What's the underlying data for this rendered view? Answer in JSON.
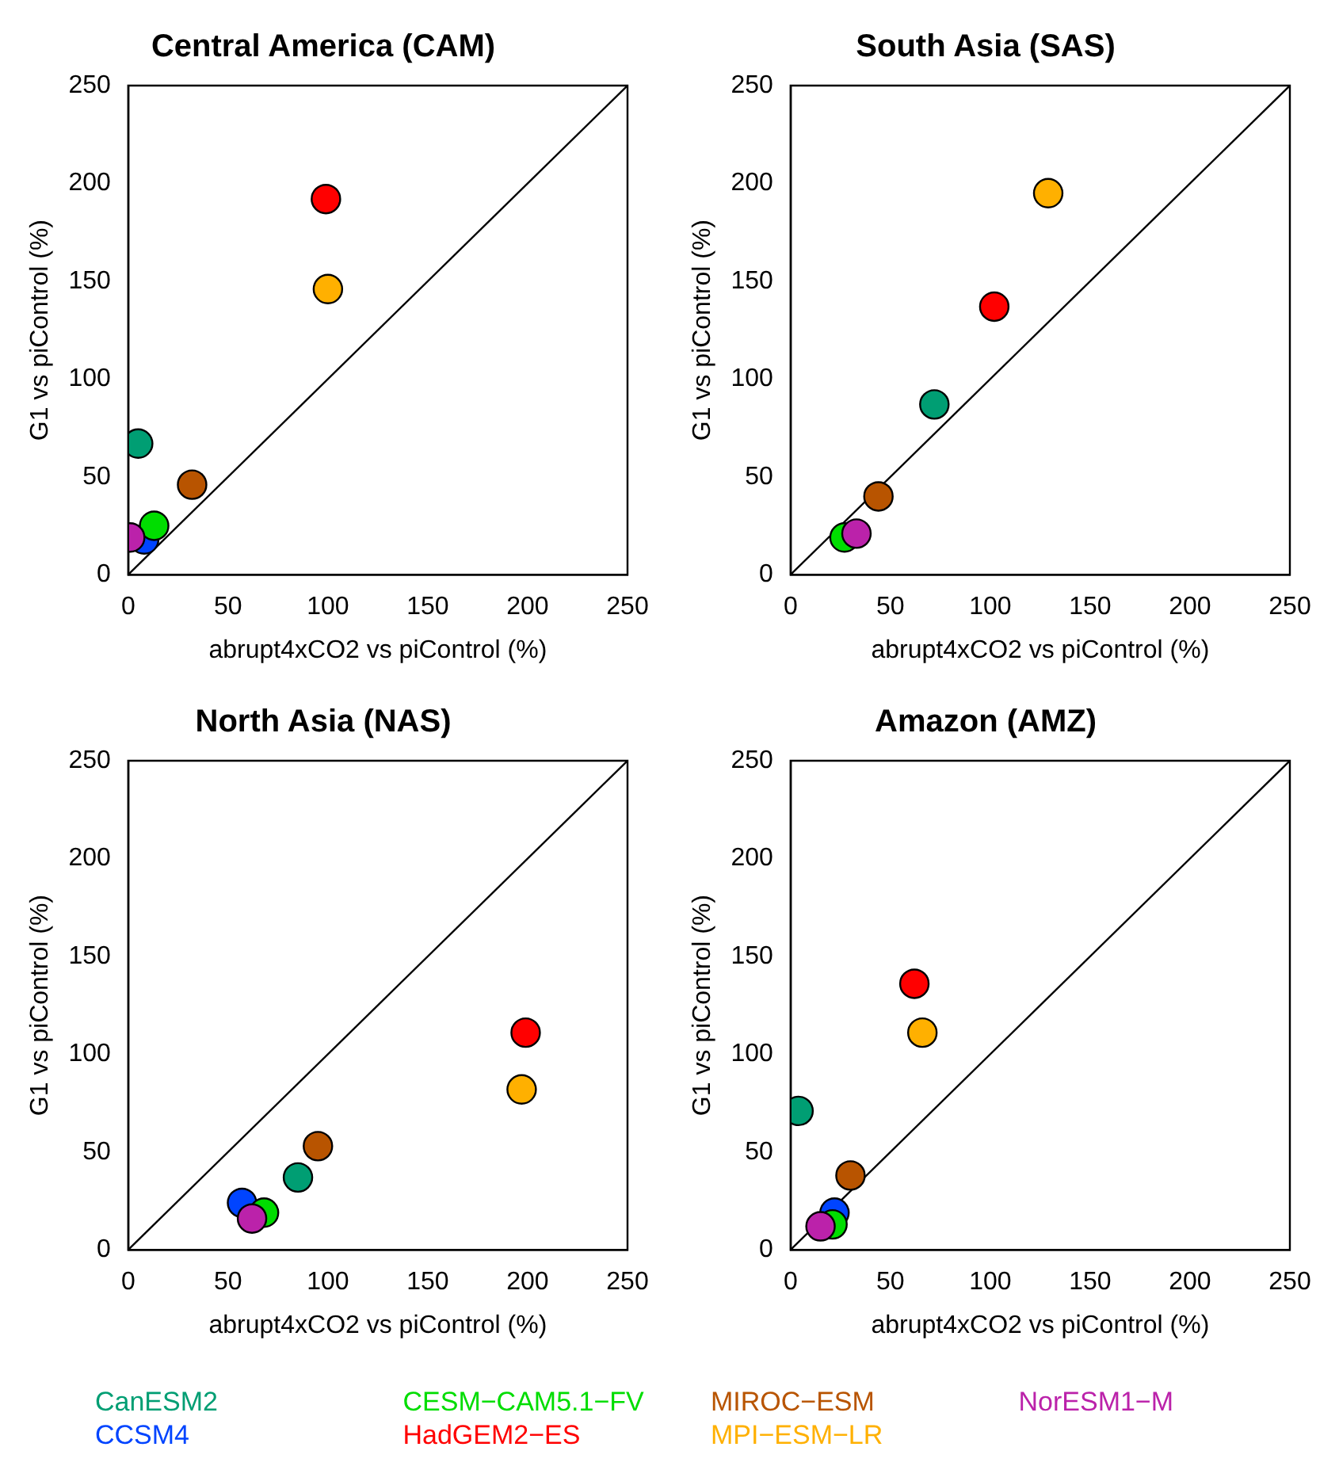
{
  "chart_data": [
    {
      "type": "scatter",
      "title": "Central America (CAM)",
      "xlabel": "abrupt4xCO2 vs piControl (%)",
      "ylabel": "G1 vs piControl (%)",
      "xlim": [
        0,
        250
      ],
      "ylim": [
        0,
        250
      ],
      "xticks": [
        0,
        50,
        100,
        150,
        200,
        250
      ],
      "yticks": [
        0,
        50,
        100,
        150,
        200,
        250
      ],
      "grid": false,
      "legend": "bottom",
      "marker": "circle",
      "series": [
        {
          "name": "CanESM2",
          "color": "#009e73",
          "x": [
            5
          ],
          "values": [
            67
          ]
        },
        {
          "name": "CCSM4",
          "color": "#0044ff",
          "x": [
            8
          ],
          "values": [
            18
          ]
        },
        {
          "name": "CESM−CAM5.1−FV",
          "color": "#00dd00",
          "x": [
            13
          ],
          "values": [
            25
          ]
        },
        {
          "name": "HadGEM2−ES",
          "color": "#ff0000",
          "x": [
            99
          ],
          "values": [
            192
          ]
        },
        {
          "name": "MIROC−ESM",
          "color": "#b85400",
          "x": [
            32
          ],
          "values": [
            46
          ]
        },
        {
          "name": "MPI−ESM−LR",
          "color": "#ffb000",
          "x": [
            100
          ],
          "values": [
            146
          ]
        },
        {
          "name": "NorESM1−M",
          "color": "#bb22aa",
          "x": [
            1
          ],
          "values": [
            19
          ]
        },
        {
          "type": "line",
          "marker": "none",
          "color": "#000000",
          "x": [
            0,
            250
          ],
          "values": [
            0,
            250
          ]
        }
      ]
    },
    {
      "type": "scatter",
      "title": "South Asia (SAS)",
      "xlabel": "abrupt4xCO2 vs piControl (%)",
      "ylabel": "G1 vs piControl (%)",
      "xlim": [
        0,
        250
      ],
      "ylim": [
        0,
        250
      ],
      "xticks": [
        0,
        50,
        100,
        150,
        200,
        250
      ],
      "yticks": [
        0,
        50,
        100,
        150,
        200,
        250
      ],
      "grid": false,
      "marker": "circle",
      "series": [
        {
          "color": "#009e73",
          "x": [
            72
          ],
          "values": [
            87
          ]
        },
        {
          "color": "#00dd00",
          "x": [
            27
          ],
          "values": [
            19
          ]
        },
        {
          "color": "#ff0000",
          "x": [
            102
          ],
          "values": [
            137
          ]
        },
        {
          "color": "#b85400",
          "x": [
            44
          ],
          "values": [
            40
          ]
        },
        {
          "color": "#ffb000",
          "x": [
            129
          ],
          "values": [
            195
          ]
        },
        {
          "color": "#bb22aa",
          "x": [
            33
          ],
          "values": [
            21
          ]
        },
        {
          "type": "line",
          "marker": "none",
          "color": "#000000",
          "x": [
            0,
            250
          ],
          "values": [
            0,
            250
          ]
        }
      ]
    },
    {
      "type": "scatter",
      "title": "North Asia (NAS)",
      "xlabel": "abrupt4xCO2 vs piControl (%)",
      "ylabel": "G1 vs piControl (%)",
      "xlim": [
        0,
        250
      ],
      "ylim": [
        0,
        250
      ],
      "xticks": [
        0,
        50,
        100,
        150,
        200,
        250
      ],
      "yticks": [
        0,
        50,
        100,
        150,
        200,
        250
      ],
      "grid": false,
      "marker": "circle",
      "series": [
        {
          "color": "#009e73",
          "x": [
            85
          ],
          "values": [
            37
          ]
        },
        {
          "color": "#0044ff",
          "x": [
            57
          ],
          "values": [
            24
          ]
        },
        {
          "color": "#00dd00",
          "x": [
            68
          ],
          "values": [
            19
          ]
        },
        {
          "color": "#ff0000",
          "x": [
            199
          ],
          "values": [
            111
          ]
        },
        {
          "color": "#b85400",
          "x": [
            95
          ],
          "values": [
            53
          ]
        },
        {
          "color": "#ffb000",
          "x": [
            197
          ],
          "values": [
            82
          ]
        },
        {
          "color": "#bb22aa",
          "x": [
            62
          ],
          "values": [
            16
          ]
        },
        {
          "type": "line",
          "marker": "none",
          "color": "#000000",
          "x": [
            0,
            250
          ],
          "values": [
            0,
            250
          ]
        }
      ]
    },
    {
      "type": "scatter",
      "title": "Amazon (AMZ)",
      "xlabel": "abrupt4xCO2 vs piControl (%)",
      "ylabel": "G1 vs piControl (%)",
      "xlim": [
        0,
        250
      ],
      "ylim": [
        0,
        250
      ],
      "xticks": [
        0,
        50,
        100,
        150,
        200,
        250
      ],
      "yticks": [
        0,
        50,
        100,
        150,
        200,
        250
      ],
      "grid": false,
      "marker": "circle",
      "series": [
        {
          "color": "#009e73",
          "x": [
            4
          ],
          "values": [
            71
          ]
        },
        {
          "color": "#0044ff",
          "x": [
            22
          ],
          "values": [
            19
          ]
        },
        {
          "color": "#00dd00",
          "x": [
            21
          ],
          "values": [
            13
          ]
        },
        {
          "color": "#ff0000",
          "x": [
            62
          ],
          "values": [
            136
          ]
        },
        {
          "color": "#b85400",
          "x": [
            30
          ],
          "values": [
            38
          ]
        },
        {
          "color": "#ffb000",
          "x": [
            66
          ],
          "values": [
            111
          ]
        },
        {
          "color": "#bb22aa",
          "x": [
            15
          ],
          "values": [
            12
          ]
        },
        {
          "type": "line",
          "marker": "none",
          "color": "#000000",
          "x": [
            0,
            250
          ],
          "values": [
            0,
            250
          ]
        }
      ]
    }
  ]
}
